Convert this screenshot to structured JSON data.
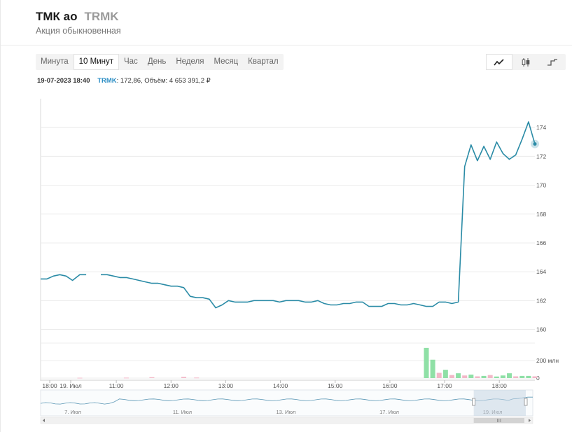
{
  "header": {
    "name": "ТМК ао",
    "ticker": "TRMK",
    "subtitle": "Акция обыкновенная"
  },
  "periods": [
    "Минута",
    "10 Минут",
    "Час",
    "День",
    "Неделя",
    "Месяц",
    "Квартал"
  ],
  "active_period": "10 Минут",
  "chart_types": [
    {
      "name": "line-chart-icon",
      "active": true
    },
    {
      "name": "candlestick-chart-icon",
      "active": false
    },
    {
      "name": "step-chart-icon",
      "active": false
    }
  ],
  "info": {
    "datetime": "19-07-2023 18:40",
    "ticker": "TRMK",
    "rest": ": 172,86, Объём: 4 653 391,2 ₽"
  },
  "colors": {
    "line": "#2a8ba6",
    "vol_up": "#8fe0a6",
    "vol_down": "#f2b8c8"
  },
  "chart_data": {
    "type": "line",
    "y_ticks": [
      160,
      162,
      164,
      166,
      168,
      170,
      172,
      174
    ],
    "ylim": [
      159.2,
      176.0
    ],
    "x_labels": [
      {
        "label": "18:00",
        "at": 0.7
      },
      {
        "label": "19. Июл",
        "at": 3.0
      },
      {
        "label": "11:00",
        "at": 8.0
      },
      {
        "label": "12:00",
        "at": 14.0
      },
      {
        "label": "13:00",
        "at": 20.0
      },
      {
        "label": "14:00",
        "at": 26.0
      },
      {
        "label": "15:00",
        "at": 32.0
      },
      {
        "label": "16:00",
        "at": 38.0
      },
      {
        "label": "17:00",
        "at": 44.0
      },
      {
        "label": "18:00",
        "at": 50.0
      }
    ],
    "x_range": [
      -0.3,
      53.9
    ],
    "series": [
      {
        "x": [
          -0.3,
          0.4,
          1.1,
          1.8,
          2.5,
          3.2,
          4.0,
          4.7
        ],
        "y": [
          163.5,
          163.5,
          163.7,
          163.8,
          163.7,
          163.4,
          163.8,
          163.8
        ]
      },
      {
        "x": [
          6.3,
          7.0,
          7.7,
          8.4,
          9.1,
          9.8,
          10.5,
          11.2,
          11.9,
          12.6,
          13.3,
          14.0,
          14.7,
          15.4,
          16.1,
          16.8,
          17.5,
          18.2,
          18.9,
          19.6,
          20.3,
          21.0,
          21.7,
          22.4,
          23.1,
          23.8,
          24.5,
          25.2,
          25.9,
          26.6,
          27.3,
          28.0,
          28.7,
          29.4,
          30.1,
          30.8,
          31.5,
          32.2,
          32.9,
          33.6,
          34.3,
          35.0,
          35.7,
          36.4,
          37.1,
          37.8,
          38.5,
          39.2,
          39.9,
          40.6,
          41.3,
          42.0,
          42.7,
          43.4,
          44.1,
          44.8,
          45.5,
          46.2,
          46.9,
          47.6,
          48.3,
          49.0,
          49.7,
          50.4,
          51.1,
          51.8,
          52.5,
          53.2,
          53.9
        ],
        "y": [
          163.8,
          163.8,
          163.7,
          163.6,
          163.6,
          163.5,
          163.4,
          163.3,
          163.2,
          163.2,
          163.1,
          163.0,
          163.0,
          162.9,
          162.3,
          162.2,
          162.2,
          162.1,
          161.5,
          161.7,
          162.0,
          161.9,
          161.9,
          161.9,
          162.0,
          162.0,
          162.0,
          162.0,
          161.9,
          162.0,
          162.0,
          162.0,
          161.9,
          161.9,
          162.0,
          161.8,
          161.7,
          161.7,
          161.8,
          161.8,
          161.9,
          161.9,
          161.6,
          161.6,
          161.6,
          161.8,
          161.8,
          161.7,
          161.7,
          161.8,
          161.7,
          161.6,
          161.6,
          161.9,
          161.9,
          161.8,
          161.9,
          171.3,
          172.8,
          171.7,
          172.7,
          171.8,
          173.0,
          172.2,
          171.8,
          172.1,
          173.2,
          174.4,
          172.86
        ]
      }
    ],
    "volume": {
      "ticks": [
        {
          "label": "200 млн",
          "value": 200
        },
        {
          "label": "0",
          "value": 0
        }
      ],
      "max": 400,
      "bars": [
        {
          "x": 4.0,
          "v": 4,
          "up": false
        },
        {
          "x": 9.1,
          "v": 5,
          "up": false
        },
        {
          "x": 11.9,
          "v": 10,
          "up": false
        },
        {
          "x": 15.4,
          "v": 14,
          "up": false
        },
        {
          "x": 16.8,
          "v": 6,
          "up": false
        },
        {
          "x": 42.0,
          "v": 345,
          "up": true
        },
        {
          "x": 42.7,
          "v": 210,
          "up": true
        },
        {
          "x": 43.4,
          "v": 60,
          "up": false
        },
        {
          "x": 44.1,
          "v": 95,
          "up": true
        },
        {
          "x": 44.8,
          "v": 35,
          "up": false
        },
        {
          "x": 45.5,
          "v": 55,
          "up": true
        },
        {
          "x": 46.2,
          "v": 30,
          "up": false
        },
        {
          "x": 46.9,
          "v": 40,
          "up": true
        },
        {
          "x": 47.6,
          "v": 20,
          "up": false
        },
        {
          "x": 48.3,
          "v": 25,
          "up": true
        },
        {
          "x": 49.0,
          "v": 35,
          "up": false
        },
        {
          "x": 49.7,
          "v": 18,
          "up": true
        },
        {
          "x": 50.4,
          "v": 30,
          "up": true
        },
        {
          "x": 51.1,
          "v": 55,
          "up": true
        },
        {
          "x": 51.8,
          "v": 20,
          "up": false
        },
        {
          "x": 52.5,
          "v": 25,
          "up": true
        },
        {
          "x": 53.2,
          "v": 25,
          "up": true
        },
        {
          "x": 53.9,
          "v": 20,
          "up": false
        }
      ]
    },
    "navigator": {
      "labels": [
        "7. Июл",
        "11. Июл",
        "13. Июл",
        "17. Июл",
        "19. Июл"
      ],
      "scroll_label": "III",
      "window_start": 0.88
    }
  }
}
